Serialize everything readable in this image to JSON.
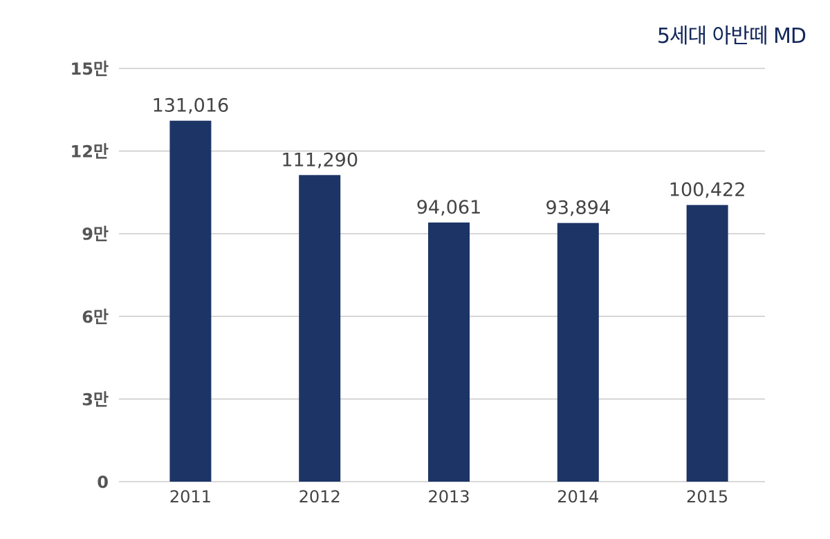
{
  "chart_data": {
    "type": "bar",
    "series_title": "5세대 아반떼 MD",
    "categories": [
      "2011",
      "2012",
      "2013",
      "2014",
      "2015"
    ],
    "values": [
      131016,
      111290,
      94061,
      93894,
      100422
    ],
    "value_labels": [
      "131,016",
      "111,290",
      "94,061",
      "93,894",
      "100,422"
    ],
    "y_ticks": [
      {
        "value": 0,
        "label": "0"
      },
      {
        "value": 30000,
        "label": "3만"
      },
      {
        "value": 60000,
        "label": "6만"
      },
      {
        "value": 90000,
        "label": "9만"
      },
      {
        "value": 120000,
        "label": "12만"
      },
      {
        "value": 150000,
        "label": "15만"
      }
    ],
    "ylim": [
      0,
      150000
    ],
    "grid": true,
    "legend_placement": "top-right",
    "colors": {
      "bar": "#1d3566",
      "grid": "#b0b0b0",
      "title": "#13275a"
    }
  }
}
